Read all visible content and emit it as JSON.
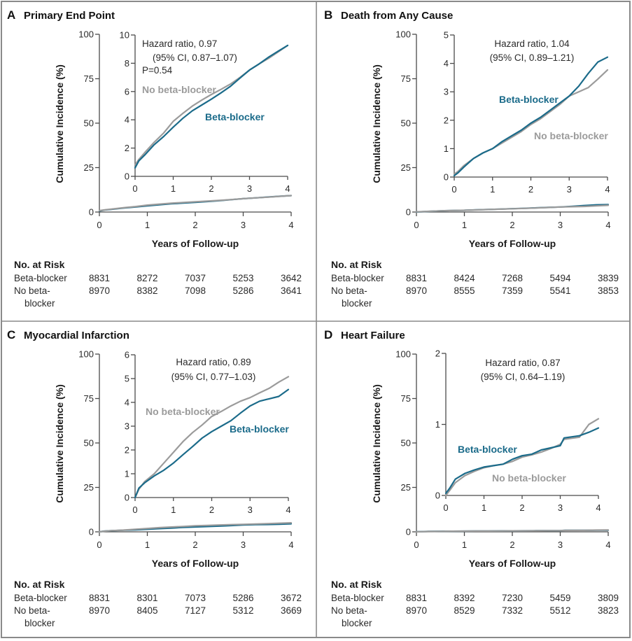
{
  "colors": {
    "beta_blocker": "#1b6b8a",
    "no_beta_blocker": "#9b9b9b"
  },
  "chart_data": [
    {
      "type": "line",
      "panel_letter": "A",
      "title": "Primary End Point",
      "xlabel": "Years of Follow-up",
      "ylabel": "Cumulative Incidence (%)",
      "xlim": [
        0,
        4
      ],
      "xticks": [
        0,
        1,
        2,
        3,
        4
      ],
      "ylim": [
        0,
        100
      ],
      "yticks": [
        0,
        25,
        50,
        75,
        100
      ],
      "inset": {
        "ylim": [
          0,
          10
        ],
        "yticks": [
          0,
          2,
          4,
          6,
          8,
          10
        ],
        "xticks": [
          0,
          1,
          2,
          3,
          4
        ]
      },
      "annotation": {
        "hazard_ratio": "Hazard ratio, 0.97",
        "ci": "(95% CI, 0.87–1.07)",
        "p_value": "P=0.54"
      },
      "x": [
        0,
        0.1,
        0.25,
        0.5,
        0.75,
        1,
        1.25,
        1.5,
        1.75,
        2,
        2.25,
        2.5,
        2.75,
        3,
        3.25,
        3.5,
        3.75,
        4
      ],
      "series": [
        {
          "name": "Beta-blocker",
          "color": "#1b6b8a",
          "values": [
            0.6,
            1.1,
            1.5,
            2.24,
            2.82,
            3.48,
            4.1,
            4.64,
            5.05,
            5.46,
            5.9,
            6.37,
            6.95,
            7.52,
            7.95,
            8.43,
            8.85,
            9.26
          ]
        },
        {
          "name": "No beta-blocker",
          "color": "#9b9b9b",
          "values": [
            0.8,
            1.2,
            1.67,
            2.41,
            3.07,
            3.89,
            4.45,
            4.97,
            5.4,
            5.79,
            6.15,
            6.53,
            7.0,
            7.52,
            7.95,
            8.35,
            8.8,
            9.26
          ]
        }
      ],
      "risk_table": {
        "header": "No. at Risk",
        "rows": [
          {
            "label": [
              "Beta-blocker"
            ],
            "values": [
              "8831",
              "8272",
              "7037",
              "5253",
              "3642"
            ]
          },
          {
            "label": [
              "No beta-",
              "blocker"
            ],
            "values": [
              "8970",
              "8382",
              "7098",
              "5286",
              "3641"
            ]
          }
        ]
      }
    },
    {
      "type": "line",
      "panel_letter": "B",
      "title": "Death from Any Cause",
      "xlabel": "Years of Follow-up",
      "ylabel": "Cumulative Incidence (%)",
      "xlim": [
        0,
        4
      ],
      "xticks": [
        0,
        1,
        2,
        3,
        4
      ],
      "ylim": [
        0,
        100
      ],
      "yticks": [
        0,
        25,
        50,
        75,
        100
      ],
      "inset": {
        "ylim": [
          0,
          5
        ],
        "yticks": [
          0,
          1,
          2,
          3,
          4,
          5
        ],
        "xticks": [
          0,
          1,
          2,
          3,
          4
        ]
      },
      "annotation": {
        "hazard_ratio": "Hazard ratio, 1.04",
        "ci": "(95% CI, 0.89–1.21)"
      },
      "x": [
        0,
        0.1,
        0.25,
        0.5,
        0.75,
        1,
        1.25,
        1.5,
        1.75,
        2,
        2.25,
        2.5,
        2.75,
        3,
        3.25,
        3.5,
        3.75,
        4
      ],
      "series": [
        {
          "name": "Beta-blocker",
          "color": "#1b6b8a",
          "values": [
            0.05,
            0.15,
            0.35,
            0.65,
            0.85,
            1.0,
            1.25,
            1.45,
            1.65,
            1.9,
            2.1,
            2.35,
            2.6,
            2.85,
            3.2,
            3.65,
            4.05,
            4.22
          ]
        },
        {
          "name": "No beta-blocker",
          "color": "#9b9b9b",
          "values": [
            0.1,
            0.2,
            0.4,
            0.65,
            0.85,
            1.0,
            1.2,
            1.4,
            1.6,
            1.85,
            2.05,
            2.3,
            2.55,
            2.85,
            3.0,
            3.15,
            3.45,
            3.77
          ]
        }
      ],
      "risk_table": {
        "header": "No. at Risk",
        "rows": [
          {
            "label": [
              "Beta-blocker"
            ],
            "values": [
              "8831",
              "8424",
              "7268",
              "5494",
              "3839"
            ]
          },
          {
            "label": [
              "No beta-",
              "blocker"
            ],
            "values": [
              "8970",
              "8555",
              "7359",
              "5541",
              "3853"
            ]
          }
        ]
      }
    },
    {
      "type": "line",
      "panel_letter": "C",
      "title": "Myocardial Infarction",
      "xlabel": "Years of Follow-up",
      "ylabel": "Cumulative Incidence (%)",
      "xlim": [
        0,
        4
      ],
      "xticks": [
        0,
        1,
        2,
        3,
        4
      ],
      "ylim": [
        0,
        100
      ],
      "yticks": [
        0,
        25,
        50,
        75,
        100
      ],
      "inset": {
        "ylim": [
          0,
          6
        ],
        "yticks": [
          0,
          1,
          2,
          3,
          4,
          5,
          6
        ],
        "xticks": [
          0,
          1,
          2,
          3,
          4
        ]
      },
      "annotation": {
        "hazard_ratio": "Hazard ratio, 0.89",
        "ci": "(95% CI, 0.77–1.03)"
      },
      "x": [
        0,
        0.1,
        0.25,
        0.5,
        0.75,
        1,
        1.25,
        1.5,
        1.75,
        2,
        2.25,
        2.5,
        2.75,
        3,
        3.25,
        3.5,
        3.75,
        4
      ],
      "series": [
        {
          "name": "Beta-blocker",
          "color": "#1b6b8a",
          "values": [
            0.0,
            0.4,
            0.62,
            0.91,
            1.15,
            1.45,
            1.8,
            2.14,
            2.5,
            2.77,
            3.0,
            3.23,
            3.55,
            3.85,
            4.05,
            4.15,
            4.25,
            4.54
          ]
        },
        {
          "name": "No beta-blocker",
          "color": "#9b9b9b",
          "values": [
            0.0,
            0.35,
            0.67,
            1.0,
            1.45,
            1.9,
            2.35,
            2.73,
            3.05,
            3.41,
            3.62,
            3.85,
            4.05,
            4.2,
            4.4,
            4.59,
            4.85,
            5.08
          ]
        }
      ],
      "risk_table": {
        "header": "No. at Risk",
        "rows": [
          {
            "label": [
              "Beta-blocker"
            ],
            "values": [
              "8831",
              "8301",
              "7073",
              "5286",
              "3672"
            ]
          },
          {
            "label": [
              "No beta-",
              "blocker"
            ],
            "values": [
              "8970",
              "8405",
              "7127",
              "5312",
              "3669"
            ]
          }
        ]
      }
    },
    {
      "type": "line",
      "panel_letter": "D",
      "title": "Heart Failure",
      "xlabel": "Years of Follow-up",
      "ylabel": "Cumulative Incidence (%)",
      "xlim": [
        0,
        4
      ],
      "xticks": [
        0,
        1,
        2,
        3,
        4
      ],
      "ylim": [
        0,
        100
      ],
      "yticks": [
        0,
        25,
        50,
        75,
        100
      ],
      "inset": {
        "ylim": [
          0,
          2
        ],
        "yticks": [
          0,
          1,
          2
        ],
        "xticks": [
          0,
          1,
          2,
          3,
          4
        ]
      },
      "annotation": {
        "hazard_ratio": "Hazard ratio, 0.87",
        "ci": "(95% CI, 0.64–1.19)"
      },
      "x": [
        0,
        0.1,
        0.25,
        0.5,
        0.75,
        1,
        1.25,
        1.5,
        1.75,
        2,
        2.25,
        2.5,
        2.75,
        3,
        3.1,
        3.5,
        3.75,
        4
      ],
      "series": [
        {
          "name": "Beta-blocker",
          "color": "#1b6b8a",
          "values": [
            0.03,
            0.1,
            0.23,
            0.31,
            0.36,
            0.4,
            0.42,
            0.44,
            0.51,
            0.56,
            0.58,
            0.64,
            0.67,
            0.7,
            0.81,
            0.84,
            0.89,
            0.95
          ]
        },
        {
          "name": "No beta-blocker",
          "color": "#9b9b9b",
          "values": [
            0.0,
            0.07,
            0.18,
            0.28,
            0.34,
            0.39,
            0.42,
            0.44,
            0.48,
            0.54,
            0.57,
            0.61,
            0.66,
            0.72,
            0.79,
            0.82,
            1.0,
            1.08
          ]
        }
      ],
      "risk_table": {
        "header": "No. at Risk",
        "rows": [
          {
            "label": [
              "Beta-blocker"
            ],
            "values": [
              "8831",
              "8392",
              "7230",
              "5459",
              "3809"
            ]
          },
          {
            "label": [
              "No beta-",
              "blocker"
            ],
            "values": [
              "8970",
              "8529",
              "7332",
              "5512",
              "3823"
            ]
          }
        ]
      }
    }
  ]
}
